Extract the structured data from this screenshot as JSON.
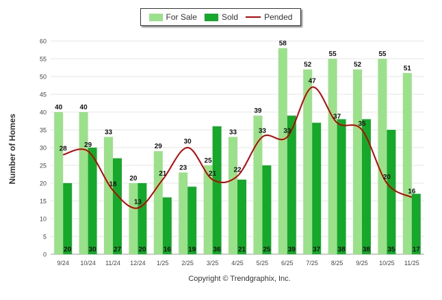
{
  "chart_data": {
    "type": "bar",
    "title": "",
    "ylabel": "Number of Homes",
    "xlabel": "Copyright © Trendgraphix, Inc.",
    "ylim": [
      0,
      60
    ],
    "yticks": [
      0,
      5,
      10,
      15,
      20,
      25,
      30,
      35,
      40,
      45,
      50,
      55,
      60
    ],
    "grid": true,
    "legend_position": "top-center",
    "categories": [
      "9/24",
      "10/24",
      "11/24",
      "12/24",
      "1/25",
      "2/25",
      "3/25",
      "4/25",
      "5/25",
      "6/25",
      "7/25",
      "8/25",
      "9/25",
      "10/25",
      "11/25"
    ],
    "series": [
      {
        "name": "For Sale",
        "type": "bar",
        "color": "#9be08a",
        "values": [
          40,
          40,
          33,
          20,
          29,
          23,
          25,
          33,
          39,
          58,
          52,
          55,
          52,
          55,
          51
        ]
      },
      {
        "name": "Sold",
        "type": "bar",
        "color": "#16a82a",
        "values": [
          20,
          30,
          27,
          20,
          16,
          19,
          36,
          21,
          25,
          39,
          37,
          38,
          38,
          35,
          17
        ]
      },
      {
        "name": "Pended",
        "type": "line",
        "color": "#c00000",
        "values": [
          28,
          29,
          18,
          13,
          21,
          30,
          21,
          22,
          33,
          33,
          47,
          37,
          35,
          20,
          16
        ]
      }
    ]
  },
  "legend": {
    "for_sale": "For Sale",
    "sold": "Sold",
    "pended": "Pended"
  }
}
